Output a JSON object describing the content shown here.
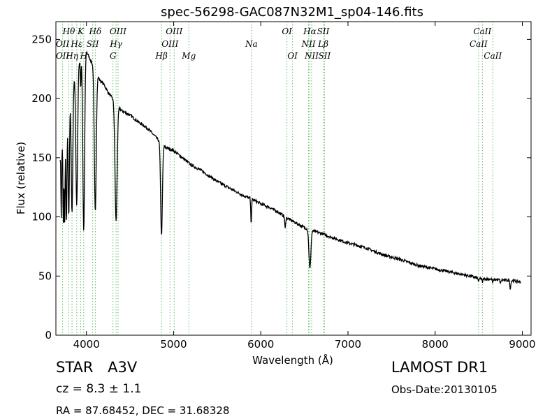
{
  "chart_data": {
    "type": "line",
    "title": "spec-56298-GAC087N32M1_sp04-146.fits",
    "xlabel": "Wavelength (Å)",
    "ylabel": "Flux (relative)",
    "xlim": [
      3650,
      9100
    ],
    "ylim": [
      0,
      265
    ],
    "xticks": [
      4000,
      5000,
      6000,
      7000,
      8000,
      9000
    ],
    "yticks": [
      0,
      50,
      100,
      150,
      200,
      250
    ],
    "grid": false,
    "continuum": [
      [
        3700,
        150
      ],
      [
        3750,
        170
      ],
      [
        3800,
        195
      ],
      [
        3850,
        215
      ],
      [
        3900,
        228
      ],
      [
        3950,
        236
      ],
      [
        4000,
        240
      ],
      [
        4050,
        232
      ],
      [
        4100,
        225
      ],
      [
        4150,
        216
      ],
      [
        4200,
        212
      ],
      [
        4250,
        205
      ],
      [
        4300,
        200
      ],
      [
        4350,
        195
      ],
      [
        4400,
        190
      ],
      [
        4500,
        186
      ],
      [
        4600,
        180
      ],
      [
        4700,
        175
      ],
      [
        4800,
        167
      ],
      [
        4900,
        159
      ],
      [
        5000,
        156
      ],
      [
        5100,
        150
      ],
      [
        5200,
        144
      ],
      [
        5300,
        140
      ],
      [
        5400,
        135
      ],
      [
        5500,
        130
      ],
      [
        5600,
        126
      ],
      [
        5700,
        122
      ],
      [
        5800,
        118
      ],
      [
        5900,
        115
      ],
      [
        6000,
        111
      ],
      [
        6100,
        108
      ],
      [
        6200,
        104
      ],
      [
        6300,
        99
      ],
      [
        6400,
        95
      ],
      [
        6500,
        91
      ],
      [
        6600,
        88
      ],
      [
        6700,
        86
      ],
      [
        6800,
        83
      ],
      [
        7000,
        78
      ],
      [
        7200,
        74
      ],
      [
        7400,
        68
      ],
      [
        7600,
        64
      ],
      [
        7800,
        59
      ],
      [
        8000,
        56
      ],
      [
        8200,
        53
      ],
      [
        8400,
        50
      ],
      [
        8500,
        48
      ],
      [
        8700,
        47
      ],
      [
        8900,
        46
      ],
      [
        8980,
        45
      ]
    ],
    "absorption": [
      {
        "w": 3712,
        "d": 55,
        "s": 4
      },
      {
        "w": 3735,
        "d": 70,
        "s": 4
      },
      {
        "w": 3750,
        "d": 80,
        "s": 5
      },
      {
        "w": 3771,
        "d": 85,
        "s": 6
      },
      {
        "w": 3798,
        "d": 95,
        "s": 7
      },
      {
        "w": 3835,
        "d": 105,
        "s": 9
      },
      {
        "w": 3889,
        "d": 115,
        "s": 10
      },
      {
        "w": 3934,
        "d": 25,
        "s": 4
      },
      {
        "w": 3969,
        "d": 150,
        "s": 10
      },
      {
        "w": 4102,
        "d": 120,
        "s": 11
      },
      {
        "w": 4340,
        "d": 100,
        "s": 12
      },
      {
        "w": 4861,
        "d": 78,
        "s": 10
      },
      {
        "w": 5890,
        "d": 20,
        "s": 5
      },
      {
        "w": 6280,
        "d": 10,
        "s": 5
      },
      {
        "w": 6563,
        "d": 33,
        "s": 11
      },
      {
        "w": 8500,
        "d": 3,
        "s": 5
      },
      {
        "w": 8542,
        "d": 3,
        "s": 5
      },
      {
        "w": 8662,
        "d": 3,
        "s": 5
      },
      {
        "w": 8750,
        "d": 3,
        "s": 5
      },
      {
        "w": 8862,
        "d": 7,
        "s": 5
      }
    ],
    "line_markers": [
      {
        "w": 3727,
        "label": "OII",
        "row": 1
      },
      {
        "w": 3727,
        "label": "OII",
        "row": 2
      },
      {
        "w": 3798,
        "label": "Hθ",
        "row": 0
      },
      {
        "w": 3835,
        "label": "Hη",
        "row": 2
      },
      {
        "w": 3889,
        "label": "Hε",
        "row": 1
      },
      {
        "w": 3934,
        "label": "K",
        "row": 0
      },
      {
        "w": 3969,
        "label": "H",
        "row": 2
      },
      {
        "w": 4072,
        "label": "SII",
        "row": 1
      },
      {
        "w": 4102,
        "label": "Hδ",
        "row": 0
      },
      {
        "w": 4305,
        "label": "G",
        "row": 2
      },
      {
        "w": 4340,
        "label": "Hγ",
        "row": 1
      },
      {
        "w": 4363,
        "label": "OIII",
        "row": 0
      },
      {
        "w": 4861,
        "label": "Hβ",
        "row": 2
      },
      {
        "w": 4959,
        "label": "OIII",
        "row": 1
      },
      {
        "w": 5007,
        "label": "OIII",
        "row": 0
      },
      {
        "w": 5175,
        "label": "Mg",
        "row": 2
      },
      {
        "w": 5893,
        "label": "Na",
        "row": 1
      },
      {
        "w": 6300,
        "label": "OI",
        "row": 0
      },
      {
        "w": 6364,
        "label": "OI",
        "row": 2
      },
      {
        "w": 6548,
        "label": "NII",
        "row": 1
      },
      {
        "w": 6563,
        "label": "Hα",
        "row": 0
      },
      {
        "w": 6583,
        "label": "NII",
        "row": 2
      },
      {
        "w": 6716,
        "label": "SII",
        "row": 0
      },
      {
        "w": 6716,
        "label": "Lβ",
        "row": 1
      },
      {
        "w": 6731,
        "label": "SII",
        "row": 2
      },
      {
        "w": 8498,
        "label": "CaII",
        "row": 1
      },
      {
        "w": 8542,
        "label": "CaII",
        "row": 0
      },
      {
        "w": 8662,
        "label": "CaII",
        "row": 2
      }
    ]
  },
  "info": {
    "object_class": "STAR",
    "subclass": "A3V",
    "survey": "LAMOST DR1",
    "cz": "cz = 8.3 ± 1.1",
    "obs_date": "Obs-Date:20130105",
    "coords": "RA = 87.68452, DEC = 31.68328"
  },
  "colors": {
    "spectrum": "#000000",
    "marker": "#66bb66"
  }
}
